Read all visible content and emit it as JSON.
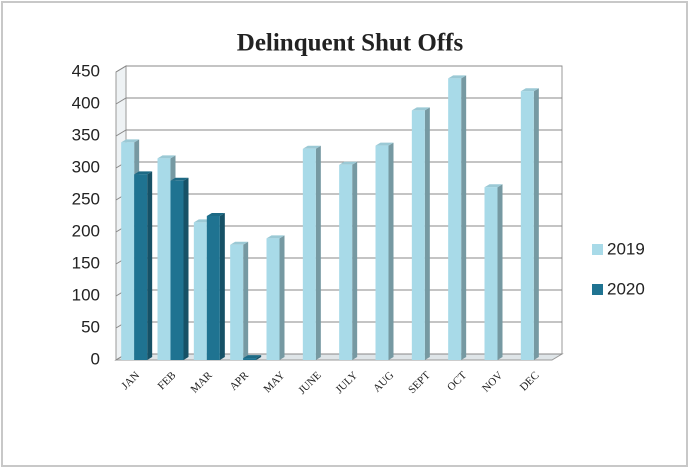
{
  "chart_data": {
    "type": "bar",
    "title": "Delinquent Shut Offs",
    "categories": [
      "JAN",
      "FEB",
      "MAR",
      "APR",
      "MAY",
      "JUNE",
      "JULY",
      "AUG",
      "SEPT",
      "OCT",
      "NOV",
      "DEC"
    ],
    "series": [
      {
        "name": "2019",
        "color": "#a8dae8",
        "values": [
          340,
          315,
          215,
          180,
          190,
          330,
          305,
          335,
          390,
          440,
          270,
          420
        ]
      },
      {
        "name": "2020",
        "color": "#1f7391",
        "values": [
          290,
          280,
          225,
          3,
          null,
          null,
          null,
          null,
          null,
          null,
          null,
          null
        ]
      }
    ],
    "ylim": [
      0,
      450
    ],
    "yticks": [
      0,
      50,
      100,
      150,
      200,
      250,
      300,
      350,
      400,
      450
    ],
    "grid": true,
    "legend": "right"
  }
}
